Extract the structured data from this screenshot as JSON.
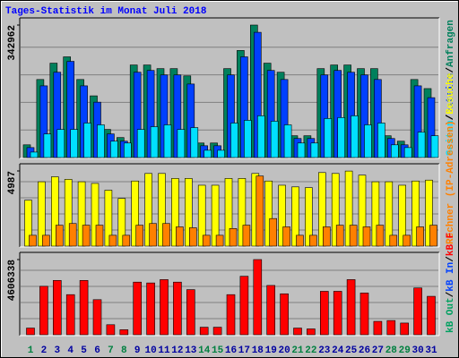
{
  "legend_separator": "/",
  "chart_data": [
    {
      "type": "bar",
      "title": "Tages-Statistik im Monat Juli 2018",
      "ylim": [
        0,
        342962
      ],
      "yticks": [
        342962
      ],
      "series": [
        {
          "name": "Anfragen",
          "color": "#00805c",
          "values": [
            32900,
            202000,
            244300,
            260700,
            202000,
            159700,
            72800,
            51700,
            239600,
            239600,
            230200,
            230200,
            211400,
            37600,
            37600,
            230200,
            277200,
            342962,
            244300,
            220800,
            56400,
            56400,
            230200,
            239600,
            239600,
            230200,
            230200,
            56400,
            42300,
            202000,
            178500
          ]
        },
        {
          "name": "Dateien",
          "color": "#0040ff",
          "values": [
            25800,
            185600,
            220800,
            249000,
            185600,
            143300,
            61100,
            42300,
            220800,
            225500,
            213800,
            213800,
            190300,
            30500,
            30500,
            213800,
            260700,
            324200,
            225500,
            202000,
            49300,
            49300,
            213800,
            225500,
            220800,
            213800,
            202000,
            49300,
            32900,
            185600,
            155000
          ]
        },
        {
          "name": "Seiten",
          "color": "#00e0ff",
          "values": [
            14100,
            61100,
            72800,
            72800,
            89300,
            84600,
            42300,
            37600,
            72800,
            79900,
            84600,
            72800,
            77500,
            18800,
            18800,
            89300,
            96300,
            108100,
            94000,
            84600,
            37600,
            37600,
            101000,
            103400,
            108100,
            84600,
            89300,
            32900,
            25800,
            65800,
            56400
          ]
        }
      ]
    },
    {
      "type": "bar",
      "ylim": [
        0,
        4987
      ],
      "yticks": [
        4987
      ],
      "series": [
        {
          "name": "Besuche",
          "color": "#ffff00",
          "values": [
            3050,
            4270,
            4600,
            4430,
            4270,
            4160,
            3710,
            3160,
            4320,
            4820,
            4820,
            4490,
            4490,
            4040,
            4040,
            4490,
            4490,
            4820,
            4320,
            4040,
            3930,
            3880,
            4880,
            4820,
            4980,
            4710,
            4270,
            4270,
            4040,
            4320,
            4380
          ]
        },
        {
          "name": "Rechner (IP-Adressen)",
          "color": "#ff8000",
          "values": [
            720,
            720,
            1390,
            1500,
            1390,
            1390,
            720,
            720,
            1390,
            1500,
            1500,
            1280,
            1220,
            720,
            720,
            1170,
            1390,
            4650,
            1830,
            1280,
            720,
            720,
            1280,
            1390,
            1390,
            1280,
            1390,
            720,
            720,
            1280,
            1390
          ]
        }
      ]
    },
    {
      "type": "bar",
      "ylim": [
        0,
        4606338
      ],
      "yticks": [
        4606338
      ],
      "categories": [
        "1",
        "2",
        "3",
        "4",
        "5",
        "6",
        "7",
        "8",
        "9",
        "10",
        "11",
        "12",
        "13",
        "14",
        "15",
        "16",
        "17",
        "18",
        "19",
        "20",
        "21",
        "22",
        "23",
        "24",
        "25",
        "26",
        "27",
        "28",
        "29",
        "30",
        "31"
      ],
      "category_colors": [
        "#008040",
        "#0000a0",
        "#0000a0",
        "#0000a0",
        "#0000a0",
        "#0000a0",
        "#008040",
        "#008040",
        "#0000a0",
        "#0000a0",
        "#0000a0",
        "#0000a0",
        "#0000a0",
        "#008040",
        "#008040",
        "#0000a0",
        "#0000a0",
        "#0000a0",
        "#0000a0",
        "#0000a0",
        "#008040",
        "#008040",
        "#0000a0",
        "#0000a0",
        "#0000a0",
        "#0000a0",
        "#0000a0",
        "#008040",
        "#008040",
        "#0000a0",
        "#0000a0"
      ],
      "series": [
        {
          "name": "kB F",
          "color": "#ff0000",
          "values": [
            409500,
            2968500,
            3326800,
            2456700,
            3326800,
            2149600,
            614200,
            307100,
            3224400,
            3173200,
            3378000,
            3224400,
            2763800,
            460600,
            460600,
            2456700,
            3582700,
            4606338,
            3019700,
            2507900,
            409500,
            358300,
            2661400,
            2661400,
            3378000,
            2559100,
            818900,
            870100,
            716500,
            2866100,
            2354300
          ]
        }
      ],
      "other_legend": [
        {
          "name": "kB In",
          "color": "#0040ff"
        },
        {
          "name": "kB Out",
          "color": "#00a060"
        }
      ]
    }
  ]
}
